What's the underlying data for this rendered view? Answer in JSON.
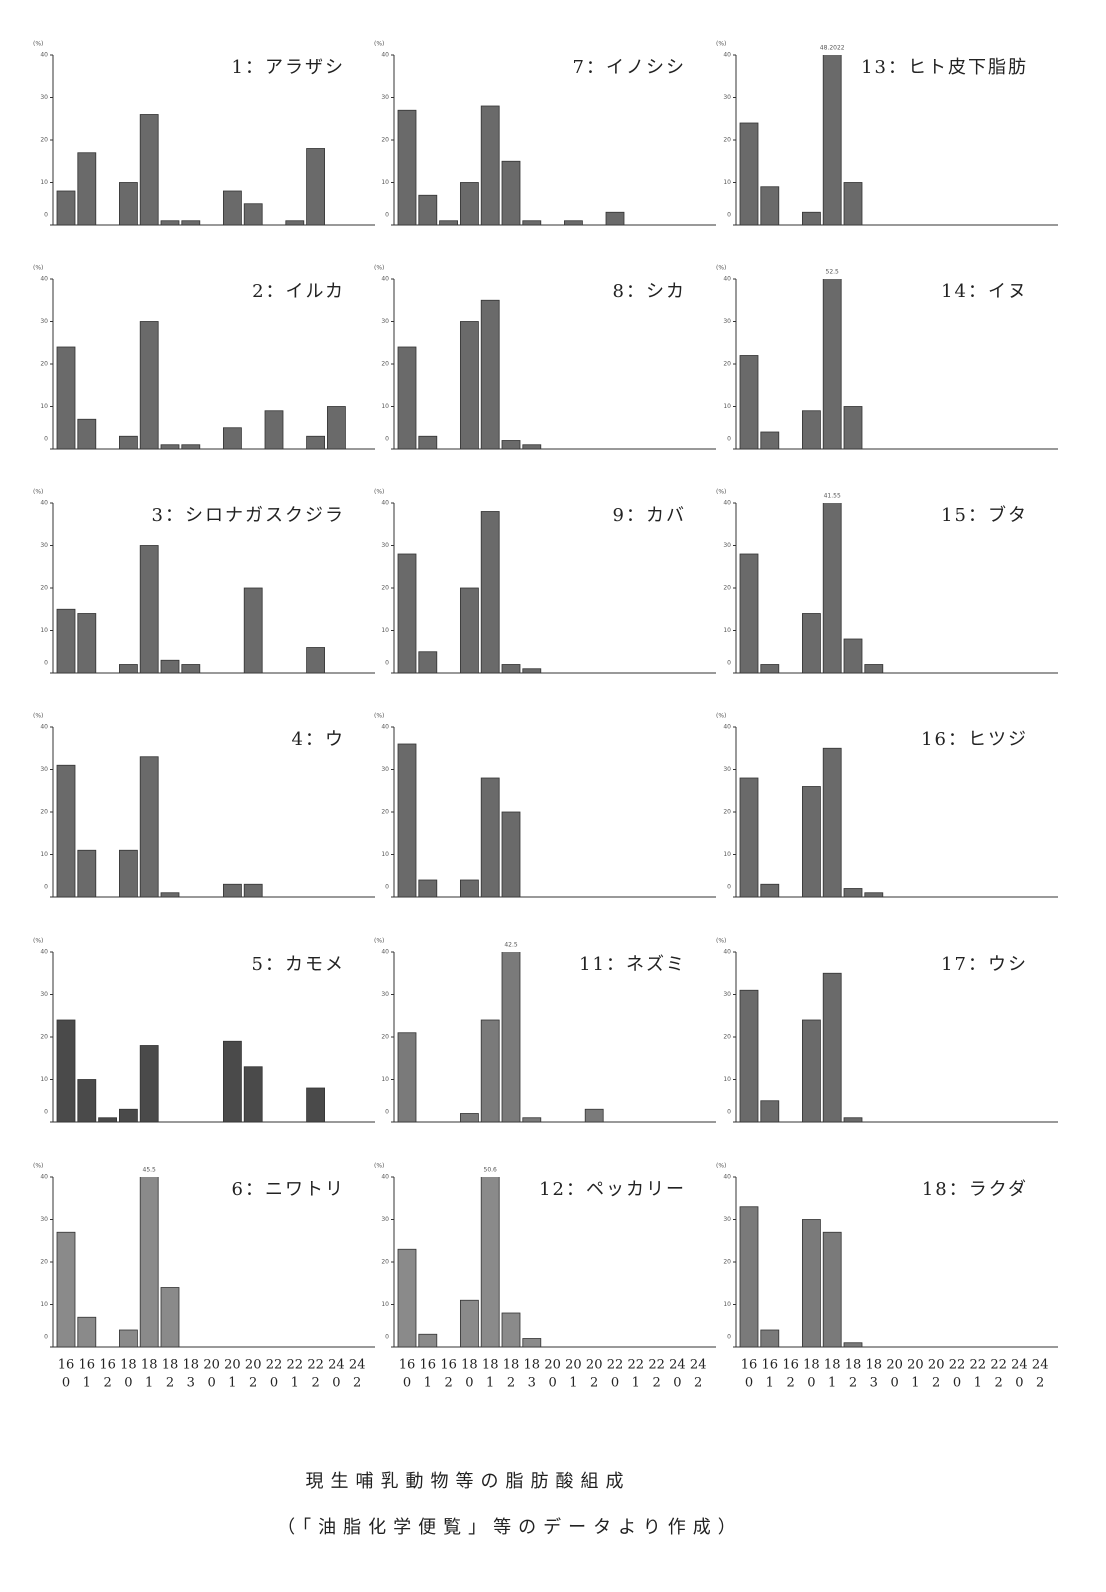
{
  "chart_data": [
    {
      "type": "bar",
      "title": "1：アラザシ",
      "ylabel": "(%)",
      "values": [
        8,
        17,
        0,
        10,
        26,
        1,
        1,
        0,
        8,
        5,
        0,
        1,
        18,
        0,
        0
      ],
      "ylim": [
        0,
        40
      ],
      "yticks": [
        0,
        10,
        20,
        30,
        40
      ],
      "color": "#6a6a6a"
    },
    {
      "type": "bar",
      "title": "2：イルカ",
      "ylabel": "(%)",
      "values": [
        24,
        7,
        0,
        3,
        30,
        1,
        1,
        0,
        5,
        0,
        9,
        0,
        3,
        10,
        0
      ],
      "ylim": [
        0,
        40
      ],
      "yticks": [
        0,
        10,
        20,
        30,
        40
      ],
      "color": "#6a6a6a"
    },
    {
      "type": "bar",
      "title": "3：シロナガスクジラ",
      "ylabel": "(%)",
      "values": [
        15,
        14,
        0,
        2,
        30,
        3,
        2,
        0,
        0,
        20,
        0,
        0,
        6,
        0,
        0
      ],
      "ylim": [
        0,
        40
      ],
      "yticks": [
        0,
        10,
        20,
        30,
        40
      ],
      "color": "#6a6a6a"
    },
    {
      "type": "bar",
      "title": "4：ウ",
      "ylabel": "(%)",
      "values": [
        31,
        11,
        0,
        11,
        33,
        1,
        0,
        0,
        3,
        3,
        0,
        0,
        0,
        0,
        0
      ],
      "ylim": [
        0,
        40
      ],
      "yticks": [
        0,
        10,
        20,
        30,
        40
      ],
      "color": "#6a6a6a"
    },
    {
      "type": "bar",
      "title": "5：カモメ",
      "ylabel": "(%)",
      "values": [
        24,
        10,
        1,
        3,
        18,
        0,
        0,
        0,
        19,
        13,
        0,
        0,
        8,
        0,
        0
      ],
      "ylim": [
        0,
        40
      ],
      "yticks": [
        0,
        10,
        20,
        30,
        40
      ],
      "color": "#4a4a4a"
    },
    {
      "type": "bar",
      "title": "6：ニワトリ",
      "ylabel": "(%)",
      "values": [
        27,
        7,
        0,
        4,
        45.5,
        14,
        0,
        0,
        0,
        0,
        0,
        0,
        0,
        0,
        0
      ],
      "value_labels": [
        null,
        null,
        null,
        null,
        "45.5",
        null,
        null,
        null,
        null,
        null,
        null,
        null,
        null,
        null,
        null
      ],
      "ylim": [
        0,
        40
      ],
      "yticks": [
        0,
        10,
        20,
        30,
        40
      ],
      "color": "#8a8a8a",
      "categories": [
        [
          "16",
          "0"
        ],
        [
          "16",
          "1"
        ],
        [
          "16",
          "2"
        ],
        [
          "18",
          "0"
        ],
        [
          "18",
          "1"
        ],
        [
          "18",
          "2"
        ],
        [
          "18",
          "3"
        ],
        [
          "20",
          "0"
        ],
        [
          "20",
          "1"
        ],
        [
          "20",
          "2"
        ],
        [
          "22",
          "0"
        ],
        [
          "22",
          "1"
        ],
        [
          "22",
          "2"
        ],
        [
          "24",
          "0"
        ],
        [
          "24",
          "2"
        ]
      ]
    },
    {
      "type": "bar",
      "title": "7：イノシシ",
      "ylabel": "(%)",
      "values": [
        27,
        7,
        1,
        10,
        28,
        15,
        1,
        0,
        1,
        0,
        3,
        0,
        0,
        0,
        0
      ],
      "ylim": [
        0,
        40
      ],
      "yticks": [
        0,
        10,
        20,
        30,
        40
      ],
      "color": "#6a6a6a"
    },
    {
      "type": "bar",
      "title": "8：シカ",
      "ylabel": "(%)",
      "values": [
        24,
        3,
        0,
        30,
        35,
        2,
        1,
        0,
        0,
        0,
        0,
        0,
        0,
        0,
        0
      ],
      "ylim": [
        0,
        40
      ],
      "yticks": [
        0,
        10,
        20,
        30,
        40
      ],
      "color": "#6a6a6a"
    },
    {
      "type": "bar",
      "title": "9：カバ",
      "ylabel": "(%)",
      "values": [
        28,
        5,
        0,
        20,
        38,
        2,
        1,
        0,
        0,
        0,
        0,
        0,
        0,
        0,
        0
      ],
      "ylim": [
        0,
        40
      ],
      "yticks": [
        0,
        10,
        20,
        30,
        40
      ],
      "color": "#6a6a6a"
    },
    {
      "type": "bar",
      "ylabel": "(%)",
      "values": [
        36,
        4,
        0,
        4,
        28,
        20,
        0,
        0,
        0,
        0,
        0,
        0,
        0,
        0,
        0
      ],
      "ylim": [
        0,
        40
      ],
      "yticks": [
        0,
        10,
        20,
        30,
        40
      ],
      "color": "#6a6a6a"
    },
    {
      "type": "bar",
      "title": "11：ネズミ",
      "ylabel": "(%)",
      "values": [
        21,
        0,
        0,
        2,
        24,
        42.5,
        1,
        0,
        0,
        3,
        0,
        0,
        0,
        0,
        0
      ],
      "value_labels": [
        null,
        null,
        null,
        null,
        null,
        "42.5",
        null,
        null,
        null,
        null,
        null,
        null,
        null,
        null,
        null
      ],
      "ylim": [
        0,
        40
      ],
      "yticks": [
        0,
        10,
        20,
        30,
        40
      ],
      "color": "#7a7a7a"
    },
    {
      "type": "bar",
      "title": "12：ペッカリー",
      "ylabel": "(%)",
      "values": [
        23,
        3,
        0,
        11,
        50.6,
        8,
        2,
        0,
        0,
        0,
        0,
        0,
        0,
        0,
        0
      ],
      "value_labels": [
        null,
        null,
        null,
        null,
        "50.6",
        null,
        null,
        null,
        null,
        null,
        null,
        null,
        null,
        null,
        null
      ],
      "ylim": [
        0,
        40
      ],
      "yticks": [
        0,
        10,
        20,
        30,
        40
      ],
      "color": "#8a8a8a",
      "categories": [
        [
          "16",
          "0"
        ],
        [
          "16",
          "1"
        ],
        [
          "16",
          "2"
        ],
        [
          "18",
          "0"
        ],
        [
          "18",
          "1"
        ],
        [
          "18",
          "2"
        ],
        [
          "18",
          "3"
        ],
        [
          "20",
          "0"
        ],
        [
          "20",
          "1"
        ],
        [
          "20",
          "2"
        ],
        [
          "22",
          "0"
        ],
        [
          "22",
          "1"
        ],
        [
          "22",
          "2"
        ],
        [
          "24",
          "0"
        ],
        [
          "24",
          "2"
        ]
      ]
    },
    {
      "type": "bar",
      "title": "13：ヒト皮下脂肪",
      "ylabel": "(%)",
      "values": [
        24,
        9,
        0,
        3,
        48.2022,
        10,
        0,
        0,
        0,
        0,
        0,
        0,
        0,
        0,
        0
      ],
      "value_labels": [
        null,
        null,
        null,
        null,
        "48.2022",
        null,
        null,
        null,
        null,
        null,
        null,
        null,
        null,
        null,
        null
      ],
      "ylim": [
        0,
        40
      ],
      "yticks": [
        0,
        10,
        20,
        30,
        40
      ],
      "color": "#6a6a6a"
    },
    {
      "type": "bar",
      "title": "14：イヌ",
      "ylabel": "(%)",
      "values": [
        22,
        4,
        0,
        9,
        52.5,
        10,
        0,
        0,
        0,
        0,
        0,
        0,
        0,
        0,
        0
      ],
      "value_labels": [
        null,
        null,
        null,
        null,
        "52.5",
        null,
        null,
        null,
        null,
        null,
        null,
        null,
        null,
        null,
        null
      ],
      "ylim": [
        0,
        40
      ],
      "yticks": [
        0,
        10,
        20,
        30,
        40
      ],
      "color": "#6a6a6a"
    },
    {
      "type": "bar",
      "title": "15：ブタ",
      "ylabel": "(%)",
      "values": [
        28,
        2,
        0,
        14,
        41.55,
        8,
        2,
        0,
        0,
        0,
        0,
        0,
        0,
        0,
        0
      ],
      "value_labels": [
        null,
        null,
        null,
        null,
        "41.55",
        null,
        null,
        null,
        null,
        null,
        null,
        null,
        null,
        null,
        null
      ],
      "ylim": [
        0,
        40
      ],
      "yticks": [
        0,
        10,
        20,
        30,
        40
      ],
      "color": "#6a6a6a"
    },
    {
      "type": "bar",
      "title": "16：ヒツジ",
      "ylabel": "(%)",
      "values": [
        28,
        3,
        0,
        26,
        35,
        2,
        1,
        0,
        0,
        0,
        0,
        0,
        0,
        0,
        0
      ],
      "ylim": [
        0,
        40
      ],
      "yticks": [
        0,
        10,
        20,
        30,
        40
      ],
      "color": "#6a6a6a"
    },
    {
      "type": "bar",
      "title": "17：ウシ",
      "ylabel": "(%)",
      "values": [
        31,
        5,
        0,
        24,
        35,
        1,
        0,
        0,
        0,
        0,
        0,
        0,
        0,
        0,
        0
      ],
      "ylim": [
        0,
        40
      ],
      "yticks": [
        0,
        10,
        20,
        30,
        40
      ],
      "color": "#6a6a6a"
    },
    {
      "type": "bar",
      "title": "18：ラクダ",
      "ylabel": "(%)",
      "values": [
        33,
        4,
        0,
        30,
        27,
        1,
        0,
        0,
        0,
        0,
        0,
        0,
        0,
        0,
        0
      ],
      "ylim": [
        0,
        40
      ],
      "yticks": [
        0,
        10,
        20,
        30,
        40
      ],
      "color": "#7a7a7a",
      "categories": [
        [
          "16",
          "0"
        ],
        [
          "16",
          "1"
        ],
        [
          "16",
          "2"
        ],
        [
          "18",
          "0"
        ],
        [
          "18",
          "1"
        ],
        [
          "18",
          "2"
        ],
        [
          "18",
          "3"
        ],
        [
          "20",
          "0"
        ],
        [
          "20",
          "1"
        ],
        [
          "20",
          "2"
        ],
        [
          "22",
          "0"
        ],
        [
          "22",
          "1"
        ],
        [
          "22",
          "2"
        ],
        [
          "24",
          "0"
        ],
        [
          "24",
          "2"
        ]
      ]
    }
  ],
  "caption": [
    "現生哺乳動物等の脂肪酸組成",
    "（「油脂化学便覧」等のデータより作成）"
  ]
}
